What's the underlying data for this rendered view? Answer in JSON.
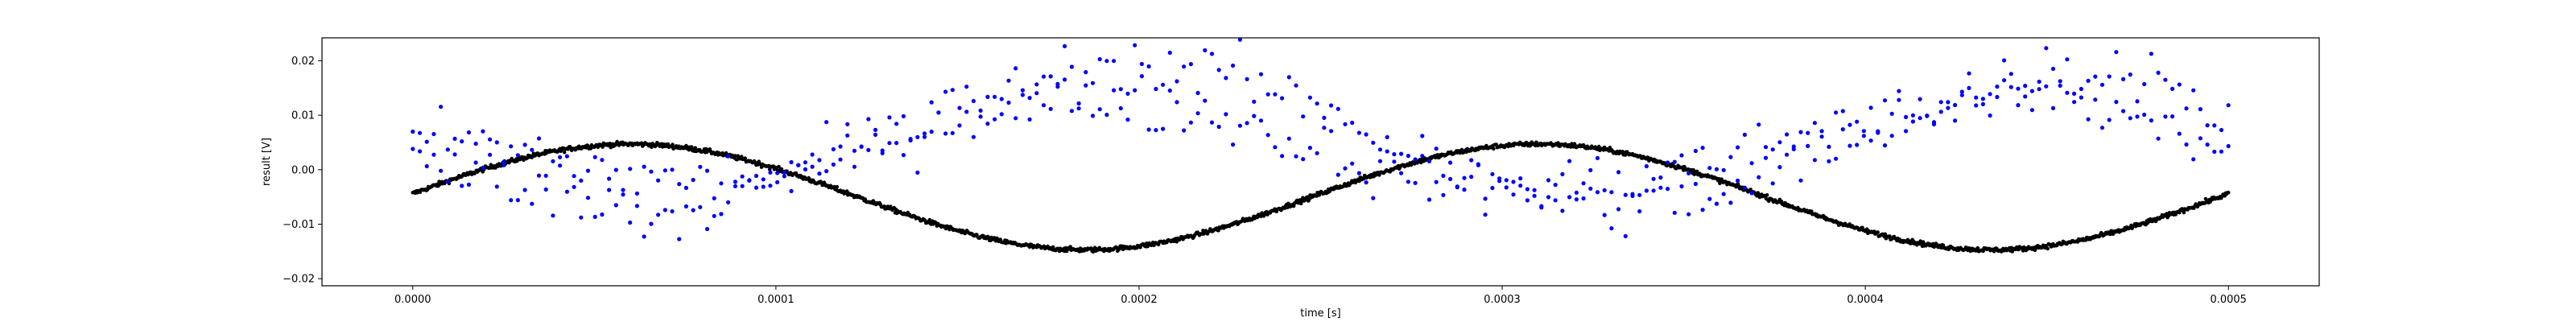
{
  "chart_data": {
    "type": "scatter",
    "title": "",
    "xlabel": "time [s]",
    "ylabel": "result [V]",
    "xlim": [
      -2.5e-05,
      0.000525
    ],
    "ylim": [
      -0.0213,
      0.0242
    ],
    "xticks": [
      0,
      0.0001,
      0.0002,
      0.0003,
      0.0004,
      0.0005
    ],
    "xtick_labels": [
      "0.0000",
      "0.0001",
      "0.0002",
      "0.0003",
      "0.0004",
      "0.0005"
    ],
    "yticks": [
      -0.02,
      -0.01,
      0.0,
      0.01,
      0.02
    ],
    "ytick_labels": [
      "−0.02",
      "−0.01",
      "0.00",
      "0.01",
      "0.02"
    ],
    "grid": false,
    "legend": "none",
    "series": [
      {
        "color": "#0000ff",
        "marker": "dot",
        "description_hidden": true,
        "bands": [
          {
            "x": [
              0,
              1e-05,
              3e-05,
              5e-05,
              7e-05,
              0.0001,
              0.00013,
              0.00016,
              0.00019,
              0.00022,
              0.00025,
              0.00027,
              0.0003,
              0.00033,
              0.00036,
              0.00039,
              0.00042,
              0.00045,
              0.00048,
              0.0005
            ],
            "y": [
              0.006,
              0.006,
              0.003,
              0.0,
              -0.002,
              -0.001,
              0.005,
              0.011,
              0.013,
              0.01,
              0.004,
              -0.001,
              -0.003,
              -0.002,
              0.002,
              0.008,
              0.012,
              0.013,
              0.009,
              0.003
            ]
          },
          {
            "x": [
              0,
              1e-05,
              3e-05,
              5e-05,
              7e-05,
              0.0001,
              0.00013,
              0.00016,
              0.00019,
              0.00022,
              0.00025,
              0.00027,
              0.0003,
              0.00033,
              0.00036,
              0.00039,
              0.00042,
              0.00045,
              0.00048,
              0.0005
            ],
            "y": [
              0.001,
              0.0,
              -0.002,
              -0.006,
              -0.008,
              -0.003,
              0.006,
              0.014,
              0.019,
              0.018,
              0.012,
              0.005,
              -0.004,
              -0.007,
              -0.005,
              0.003,
              0.012,
              0.018,
              0.018,
              0.008
            ]
          }
        ],
        "noise": 0.0025,
        "points_per_band": 260
      },
      {
        "color": "#000000",
        "marker": "dot",
        "curve": {
          "offset": -0.005,
          "amplitude": 0.0097,
          "period": 0.00025,
          "peak_x": 6e-05
        },
        "points": 2000,
        "noise": 0.0004
      }
    ]
  }
}
